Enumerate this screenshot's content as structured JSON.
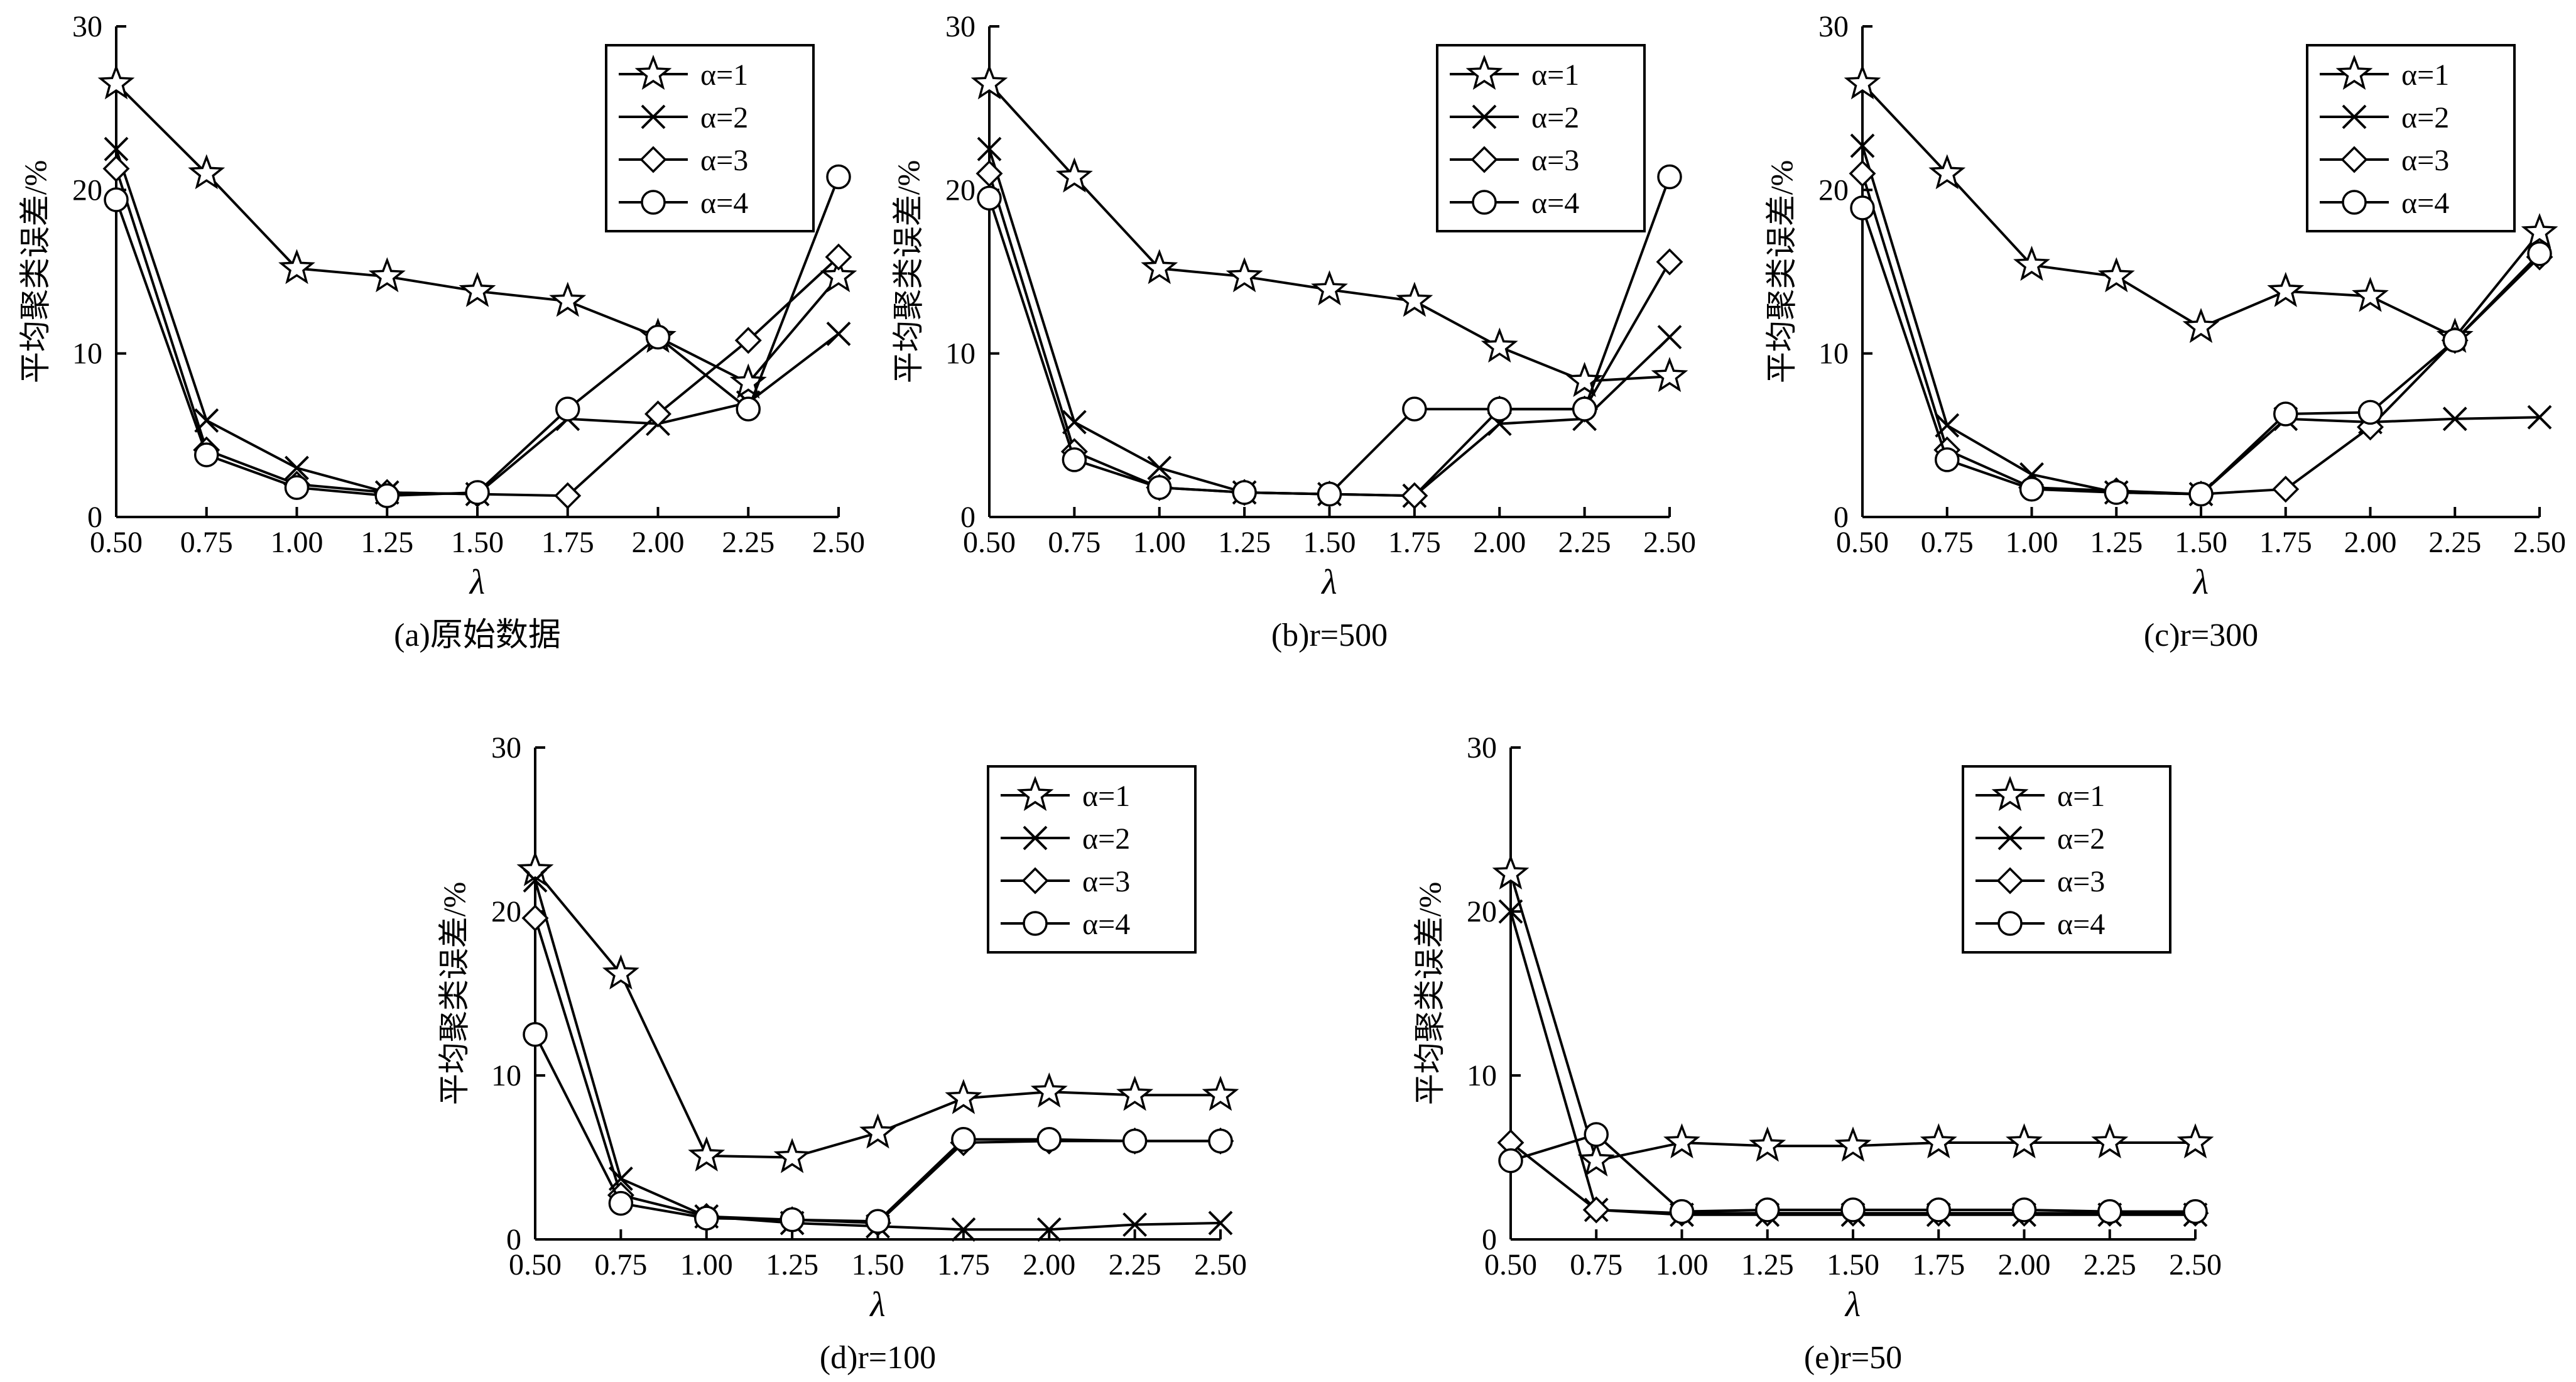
{
  "chart_data": [
    {
      "type": "line",
      "caption": "(a)原始数据",
      "xlabel": "λ",
      "ylabel": "平均聚类误差/%",
      "x": [
        0.5,
        0.75,
        1.0,
        1.25,
        1.5,
        1.75,
        2.0,
        2.25,
        2.5
      ],
      "xticks": [
        "0.50",
        "0.75",
        "1.00",
        "1.25",
        "1.50",
        "1.75",
        "2.00",
        "2.25",
        "2.50"
      ],
      "ylim": [
        0,
        30
      ],
      "yticks": [
        "0",
        "10",
        "20",
        "30"
      ],
      "legend_position": "top-right",
      "series": [
        {
          "name": "α=1",
          "marker": "star",
          "values": [
            26.5,
            21.0,
            15.2,
            14.7,
            13.8,
            13.2,
            11.0,
            8.2,
            14.7
          ]
        },
        {
          "name": "α=2",
          "marker": "x",
          "values": [
            22.5,
            5.9,
            3.0,
            1.5,
            1.4,
            6.0,
            5.7,
            7.0,
            11.2
          ]
        },
        {
          "name": "α=3",
          "marker": "diamond",
          "values": [
            21.3,
            4.1,
            2.0,
            1.5,
            1.4,
            1.3,
            6.3,
            10.8,
            15.9
          ]
        },
        {
          "name": "α=4",
          "marker": "circle",
          "values": [
            19.4,
            3.8,
            1.8,
            1.3,
            1.5,
            6.6,
            11.0,
            6.6,
            20.8
          ]
        }
      ]
    },
    {
      "type": "line",
      "caption": "(b)r=500",
      "xlabel": "λ",
      "ylabel": "平均聚类误差/%",
      "x": [
        0.5,
        0.75,
        1.0,
        1.25,
        1.5,
        1.75,
        2.0,
        2.25,
        2.5
      ],
      "xticks": [
        "0.50",
        "0.75",
        "1.00",
        "1.25",
        "1.50",
        "1.75",
        "2.00",
        "2.25",
        "2.50"
      ],
      "ylim": [
        0,
        30
      ],
      "yticks": [
        "0",
        "10",
        "20",
        "30"
      ],
      "legend_position": "top-right",
      "series": [
        {
          "name": "α=1",
          "marker": "star",
          "values": [
            26.5,
            20.8,
            15.2,
            14.7,
            13.9,
            13.2,
            10.4,
            8.3,
            8.6
          ]
        },
        {
          "name": "α=2",
          "marker": "x",
          "values": [
            22.5,
            5.8,
            3.0,
            1.5,
            1.4,
            1.3,
            5.7,
            6.0,
            11.0
          ]
        },
        {
          "name": "α=3",
          "marker": "diamond",
          "values": [
            21.0,
            4.0,
            1.8,
            1.5,
            1.4,
            1.3,
            6.6,
            6.6,
            15.6
          ]
        },
        {
          "name": "α=4",
          "marker": "circle",
          "values": [
            19.5,
            3.5,
            1.8,
            1.5,
            1.4,
            6.6,
            6.6,
            6.6,
            20.8
          ]
        }
      ]
    },
    {
      "type": "line",
      "caption": "(c)r=300",
      "xlabel": "λ",
      "ylabel": "平均聚类误差/%",
      "x": [
        0.5,
        0.75,
        1.0,
        1.25,
        1.5,
        1.75,
        2.0,
        2.25,
        2.5
      ],
      "xticks": [
        "0.50",
        "0.75",
        "1.00",
        "1.25",
        "1.50",
        "1.75",
        "2.00",
        "2.25",
        "2.50"
      ],
      "ylim": [
        0,
        30
      ],
      "yticks": [
        "0",
        "10",
        "20",
        "30"
      ],
      "legend_position": "top-right",
      "series": [
        {
          "name": "α=1",
          "marker": "star",
          "values": [
            26.5,
            21.0,
            15.4,
            14.7,
            11.6,
            13.8,
            13.5,
            11.0,
            17.4
          ]
        },
        {
          "name": "α=2",
          "marker": "x",
          "values": [
            22.7,
            5.6,
            2.6,
            1.5,
            1.4,
            6.0,
            5.8,
            6.0,
            6.1
          ]
        },
        {
          "name": "α=3",
          "marker": "diamond",
          "values": [
            21.0,
            4.1,
            1.8,
            1.6,
            1.4,
            1.7,
            5.5,
            10.8,
            15.9
          ]
        },
        {
          "name": "α=4",
          "marker": "circle",
          "values": [
            18.9,
            3.5,
            1.7,
            1.5,
            1.4,
            6.3,
            6.4,
            10.8,
            16.1
          ]
        }
      ]
    },
    {
      "type": "line",
      "caption": "(d)r=100",
      "xlabel": "λ",
      "ylabel": "平均聚类误差/%",
      "x": [
        0.5,
        0.75,
        1.0,
        1.25,
        1.5,
        1.75,
        2.0,
        2.25,
        2.5
      ],
      "xticks": [
        "0.50",
        "0.75",
        "1.00",
        "1.25",
        "1.50",
        "1.75",
        "2.00",
        "2.25",
        "2.50"
      ],
      "ylim": [
        0,
        30
      ],
      "yticks": [
        "0",
        "10",
        "20",
        "30"
      ],
      "legend_position": "top-right",
      "series": [
        {
          "name": "α=1",
          "marker": "star",
          "values": [
            22.5,
            16.2,
            5.1,
            5.0,
            6.5,
            8.6,
            9.0,
            8.8,
            8.8
          ]
        },
        {
          "name": "α=2",
          "marker": "x",
          "values": [
            21.9,
            3.7,
            1.4,
            1.0,
            0.8,
            0.6,
            0.6,
            0.9,
            1.0
          ]
        },
        {
          "name": "α=3",
          "marker": "diamond",
          "values": [
            19.6,
            2.7,
            1.4,
            1.2,
            1.0,
            5.9,
            6.0,
            6.0,
            6.0
          ]
        },
        {
          "name": "α=4",
          "marker": "circle",
          "values": [
            12.5,
            2.2,
            1.3,
            1.2,
            1.1,
            6.1,
            6.1,
            6.0,
            6.0
          ]
        }
      ]
    },
    {
      "type": "line",
      "caption": "(e)r=50",
      "xlabel": "λ",
      "ylabel": "平均聚类误差/%",
      "x": [
        0.5,
        0.75,
        1.0,
        1.25,
        1.5,
        1.75,
        2.0,
        2.25,
        2.5
      ],
      "xticks": [
        "0.50",
        "0.75",
        "1.00",
        "1.25",
        "1.50",
        "1.75",
        "2.00",
        "2.25",
        "2.50"
      ],
      "ylim": [
        0,
        30
      ],
      "yticks": [
        "0",
        "10",
        "20",
        "30"
      ],
      "legend_position": "top-right",
      "series": [
        {
          "name": "α=1",
          "marker": "star",
          "values": [
            22.3,
            4.8,
            5.9,
            5.7,
            5.7,
            5.9,
            5.9,
            5.9,
            5.9
          ]
        },
        {
          "name": "α=2",
          "marker": "x",
          "values": [
            20.0,
            1.8,
            1.5,
            1.5,
            1.5,
            1.5,
            1.5,
            1.5,
            1.5
          ]
        },
        {
          "name": "α=3",
          "marker": "diamond",
          "values": [
            5.9,
            1.8,
            1.6,
            1.6,
            1.6,
            1.6,
            1.6,
            1.6,
            1.6
          ]
        },
        {
          "name": "α=4",
          "marker": "circle",
          "values": [
            4.8,
            6.4,
            1.7,
            1.8,
            1.8,
            1.8,
            1.8,
            1.7,
            1.7
          ]
        }
      ]
    }
  ]
}
